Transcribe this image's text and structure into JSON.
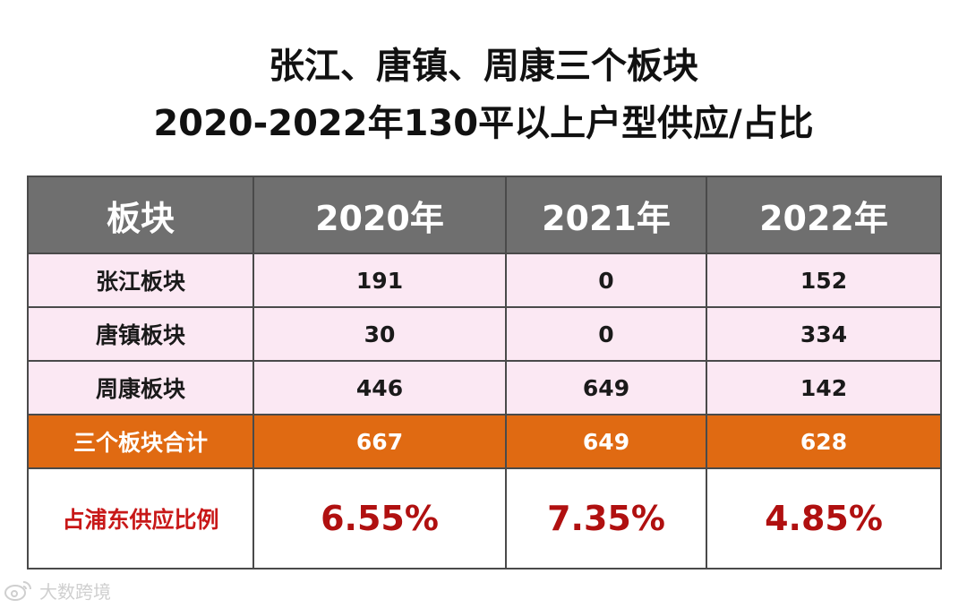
{
  "title": {
    "line1": "张江、唐镇、周康三个板块",
    "line2": "2020-2022年130平以上户型供应/占比"
  },
  "table": {
    "headers": [
      "板块",
      "2020年",
      "2021年",
      "2022年"
    ],
    "rows": [
      {
        "label": "张江板块",
        "values": [
          "191",
          "0",
          "152"
        ]
      },
      {
        "label": "唐镇板块",
        "values": [
          "30",
          "0",
          "334"
        ]
      },
      {
        "label": "周康板块",
        "values": [
          "446",
          "649",
          "142"
        ]
      }
    ],
    "total": {
      "label": "三个板块合计",
      "values": [
        "667",
        "649",
        "628"
      ]
    },
    "ratio": {
      "label": "占浦东供应比例",
      "values": [
        "6.55%",
        "7.35%",
        "4.85%"
      ]
    }
  },
  "colors": {
    "header_bg": "#6f6f6f",
    "body_bg": "#fbe8f3",
    "total_bg": "#e06a12",
    "ratio_text": "#b01010"
  },
  "watermark": {
    "text": "大数跨境",
    "icon": "weibo-icon"
  }
}
